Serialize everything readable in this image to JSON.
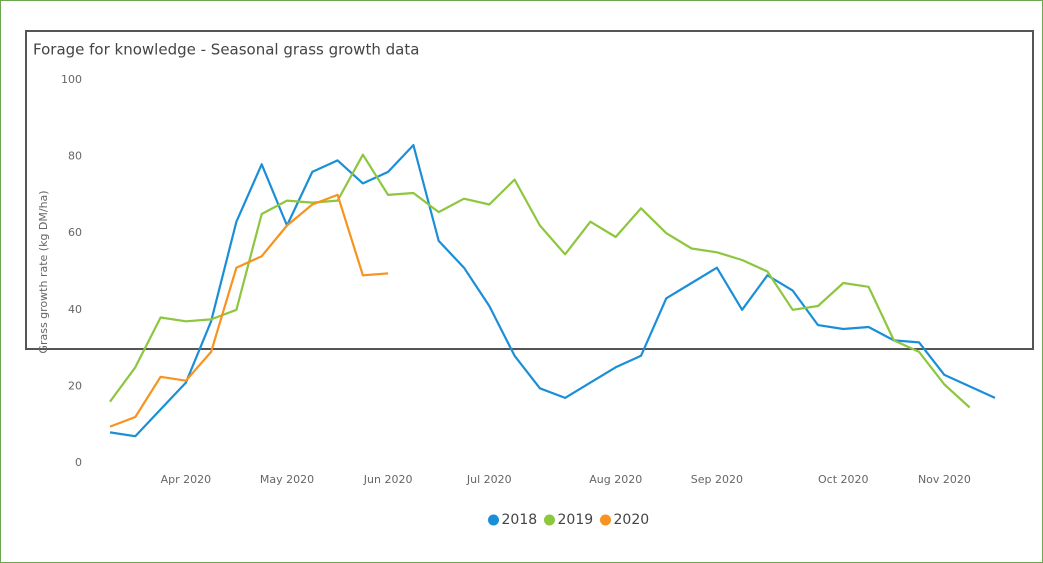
{
  "chart_data": {
    "type": "line",
    "title": "Forage for knowledge - Seasonal grass growth data",
    "y_label": "Grass growth rate (kg DM/ha)",
    "categories": [
      null,
      null,
      null,
      "Apr 2020",
      null,
      null,
      null,
      "May 2020",
      null,
      null,
      null,
      "Jun 2020",
      null,
      null,
      null,
      "Jul 2020",
      null,
      null,
      null,
      null,
      "Aug 2020",
      null,
      null,
      null,
      "Sep 2020",
      null,
      null,
      null,
      null,
      "Oct 2020",
      null,
      null,
      null,
      "Nov 2020",
      null,
      null
    ],
    "ylim": [
      0,
      100
    ],
    "yticks": [
      0,
      20,
      40,
      60,
      80,
      100
    ],
    "grid": false,
    "legend": "bottom",
    "series": [
      {
        "name": "2018",
        "color": "#1a8fd8",
        "values": [
          8,
          7,
          14,
          21,
          37,
          63,
          78,
          62,
          76,
          79,
          73,
          76,
          83,
          58,
          51,
          41,
          28,
          19.5,
          17,
          21,
          25,
          28,
          43,
          47,
          51,
          40,
          49,
          45,
          36,
          35,
          35.5,
          32,
          31.5,
          23,
          20,
          17
        ]
      },
      {
        "name": "2019",
        "color": "#8dc63f",
        "values": [
          16,
          25,
          38,
          37,
          37.5,
          40,
          65,
          68.5,
          68,
          68.5,
          80.5,
          70,
          70.5,
          65.5,
          69,
          67.5,
          74,
          62,
          54.5,
          63,
          59,
          66.5,
          60,
          56,
          55,
          53,
          50,
          40,
          41,
          47,
          46,
          32,
          29,
          20.5,
          14.5,
          null
        ]
      },
      {
        "name": "2020",
        "color": "#f7931e",
        "values": [
          9.5,
          12,
          22.5,
          21.5,
          29,
          51,
          54,
          62,
          67.5,
          70,
          49,
          49.5,
          null,
          null,
          null,
          null,
          null,
          null,
          null,
          null,
          null,
          null,
          null,
          null,
          null,
          null,
          null,
          null,
          null,
          null,
          null,
          null,
          null,
          null,
          null,
          null
        ]
      }
    ]
  }
}
